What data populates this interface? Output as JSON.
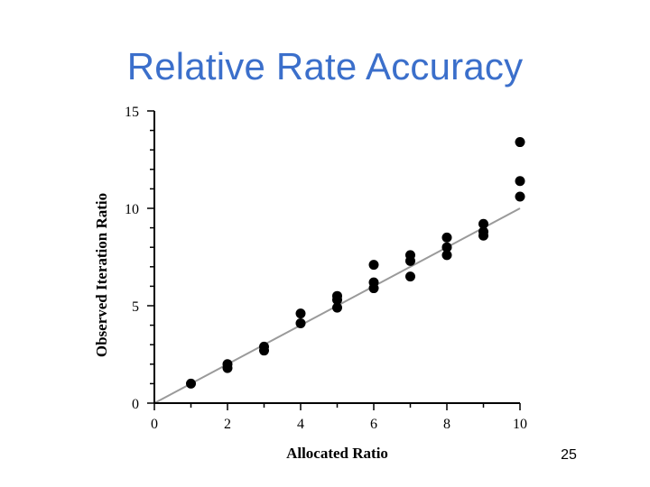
{
  "slide": {
    "title": "Relative Rate Accuracy",
    "page_number": "25"
  },
  "chart_data": {
    "type": "scatter",
    "title": "",
    "xlabel": "Allocated Ratio",
    "ylabel": "Observed Iteration Ratio",
    "xlim": [
      0,
      10
    ],
    "ylim": [
      0,
      15
    ],
    "xticks": [
      0,
      2,
      4,
      6,
      8,
      10
    ],
    "yticks": [
      0,
      5,
      10,
      15
    ],
    "grid": false,
    "reference_line": {
      "x": [
        0,
        10
      ],
      "y": [
        0,
        10
      ],
      "color": "#9a9a9a"
    },
    "points": [
      {
        "x": 1,
        "y": 1.0
      },
      {
        "x": 2,
        "y": 1.8
      },
      {
        "x": 2,
        "y": 2.0
      },
      {
        "x": 3,
        "y": 2.7
      },
      {
        "x": 3,
        "y": 2.9
      },
      {
        "x": 4,
        "y": 4.1
      },
      {
        "x": 4,
        "y": 4.6
      },
      {
        "x": 5,
        "y": 4.9
      },
      {
        "x": 5,
        "y": 5.3
      },
      {
        "x": 5,
        "y": 5.5
      },
      {
        "x": 6,
        "y": 5.9
      },
      {
        "x": 6,
        "y": 6.2
      },
      {
        "x": 6,
        "y": 7.1
      },
      {
        "x": 7,
        "y": 6.5
      },
      {
        "x": 7,
        "y": 7.3
      },
      {
        "x": 7,
        "y": 7.6
      },
      {
        "x": 8,
        "y": 7.6
      },
      {
        "x": 8,
        "y": 8.0
      },
      {
        "x": 8,
        "y": 8.5
      },
      {
        "x": 9,
        "y": 8.6
      },
      {
        "x": 9,
        "y": 8.8
      },
      {
        "x": 9,
        "y": 9.2
      },
      {
        "x": 10,
        "y": 10.6
      },
      {
        "x": 10,
        "y": 11.4
      },
      {
        "x": 10,
        "y": 13.4
      }
    ],
    "marker_color": "#000000"
  }
}
